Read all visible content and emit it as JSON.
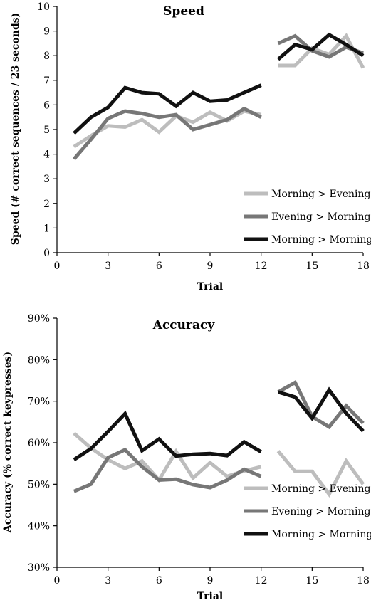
{
  "chart_data": [
    {
      "type": "line",
      "title": "Speed",
      "xlabel": "Trial",
      "ylabel": "Speed (# correct sequences / 23 seconds)",
      "xlim": [
        0,
        18
      ],
      "ylim": [
        0,
        10
      ],
      "x_ticks": [
        "0",
        "3",
        "6",
        "9",
        "12",
        "15",
        "18"
      ],
      "y_ticks": [
        "0",
        "1",
        "2",
        "3",
        "4",
        "5",
        "6",
        "7",
        "8",
        "9",
        "10"
      ],
      "grid": false,
      "legend_position": "bottom-right",
      "series": [
        {
          "name": "Morning > Evening",
          "color": "#bdbdbd",
          "segments": [
            {
              "x": [
                1,
                2,
                3,
                4,
                5,
                6,
                7,
                8,
                9,
                10,
                11,
                12
              ],
              "y": [
                4.3,
                4.75,
                5.15,
                5.1,
                5.4,
                4.9,
                5.55,
                5.3,
                5.7,
                5.35,
                5.75,
                5.6
              ]
            },
            {
              "x": [
                13,
                14,
                15,
                16,
                17,
                18
              ],
              "y": [
                7.6,
                7.6,
                8.3,
                8.05,
                8.8,
                7.5
              ]
            }
          ]
        },
        {
          "name": "Evening > Morning",
          "color": "#777777",
          "segments": [
            {
              "x": [
                1,
                2,
                3,
                4,
                5,
                6,
                7,
                8,
                9,
                10,
                11,
                12
              ],
              "y": [
                3.8,
                4.6,
                5.45,
                5.75,
                5.65,
                5.5,
                5.6,
                5.0,
                5.2,
                5.4,
                5.85,
                5.5
              ]
            },
            {
              "x": [
                13,
                14,
                15,
                16,
                17,
                18
              ],
              "y": [
                8.5,
                8.8,
                8.2,
                7.95,
                8.35,
                8.1
              ]
            }
          ]
        },
        {
          "name": "Morning > Morning",
          "color": "#111111",
          "segments": [
            {
              "x": [
                1,
                2,
                3,
                4,
                5,
                6,
                7,
                8,
                9,
                10,
                11,
                12
              ],
              "y": [
                4.85,
                5.5,
                5.9,
                6.7,
                6.5,
                6.45,
                5.95,
                6.5,
                6.15,
                6.2,
                6.5,
                6.8
              ]
            },
            {
              "x": [
                13,
                14,
                15,
                16,
                17,
                18
              ],
              "y": [
                7.85,
                8.45,
                8.25,
                8.85,
                8.45,
                8.0
              ]
            }
          ]
        }
      ]
    },
    {
      "type": "line",
      "title": "Accuracy",
      "xlabel": "Trial",
      "ylabel": "Accuracy (% correct keypresses)",
      "xlim": [
        0,
        18
      ],
      "ylim": [
        30,
        90
      ],
      "y_unit": "%",
      "x_ticks": [
        "0",
        "3",
        "6",
        "9",
        "12",
        "15",
        "18"
      ],
      "y_ticks": [
        "30%",
        "40%",
        "50%",
        "60%",
        "70%",
        "80%",
        "90%"
      ],
      "grid": false,
      "legend_position": "bottom-right",
      "series": [
        {
          "name": "Morning > Evening",
          "color": "#bdbdbd",
          "segments": [
            {
              "x": [
                1,
                2,
                3,
                4,
                5,
                6,
                7,
                8,
                9,
                10,
                11,
                12
              ],
              "y": [
                62.3,
                58.7,
                55.9,
                53.8,
                55.6,
                51.0,
                57.9,
                51.5,
                55.2,
                51.9,
                53.2,
                54.2
              ]
            },
            {
              "x": [
                13,
                14,
                15,
                16,
                17,
                18
              ],
              "y": [
                58.0,
                53.1,
                53.1,
                47.6,
                55.6,
                50.0
              ]
            }
          ]
        },
        {
          "name": "Evening > Morning",
          "color": "#777777",
          "segments": [
            {
              "x": [
                1,
                2,
                3,
                4,
                5,
                6,
                7,
                8,
                9,
                10,
                11,
                12
              ],
              "y": [
                48.3,
                50.0,
                56.4,
                58.3,
                54.2,
                51.0,
                51.2,
                49.9,
                49.2,
                51.0,
                53.6,
                51.9
              ]
            },
            {
              "x": [
                13,
                14,
                15,
                16,
                17,
                18
              ],
              "y": [
                72.2,
                74.5,
                66.3,
                63.8,
                68.9,
                64.7
              ]
            }
          ]
        },
        {
          "name": "Morning > Morning",
          "color": "#111111",
          "segments": [
            {
              "x": [
                1,
                2,
                3,
                4,
                5,
                6,
                7,
                8,
                9,
                10,
                11,
                12
              ],
              "y": [
                55.9,
                58.6,
                62.7,
                67.0,
                58.1,
                60.9,
                56.8,
                57.2,
                57.4,
                56.9,
                60.2,
                57.8
              ]
            },
            {
              "x": [
                13,
                14,
                15,
                16,
                17,
                18
              ],
              "y": [
                72.2,
                71.0,
                65.9,
                72.7,
                67.1,
                62.8
              ]
            }
          ]
        }
      ]
    }
  ]
}
